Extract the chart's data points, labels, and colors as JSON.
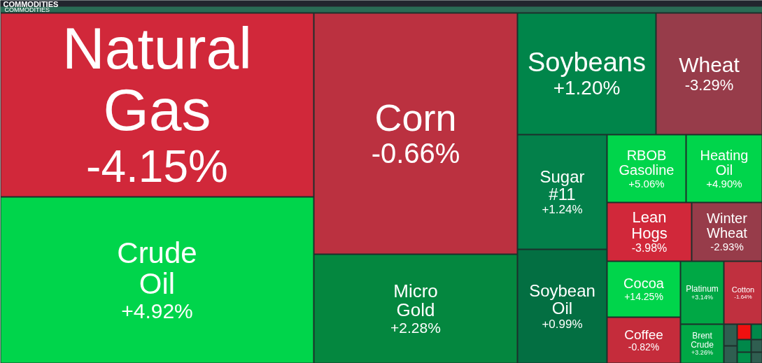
{
  "chart_data": {
    "type": "other",
    "title": "COMMODITIES",
    "subtitle": "COMMODITIES",
    "categories": [
      "Natural Gas",
      "Crude Oil",
      "Corn",
      "Micro Gold",
      "Soybeans",
      "Wheat",
      "Sugar #11",
      "Soybean Oil",
      "RBOB Gasoline",
      "Heating Oil",
      "Lean Hogs",
      "Winter Wheat",
      "Cocoa",
      "Coffee",
      "Platinum",
      "Brent Crude",
      "Cotton",
      null,
      null,
      null,
      null,
      null,
      null,
      null,
      null
    ],
    "values": [
      -4.15,
      4.92,
      -0.66,
      2.28,
      1.2,
      -3.29,
      1.24,
      0.99,
      5.06,
      4.9,
      -3.98,
      -2.93,
      14.25,
      -0.82,
      3.14,
      3.26,
      -1.64,
      null,
      null,
      null,
      null,
      null,
      null,
      null,
      null
    ],
    "value_labels": [
      "-4.15%",
      "+4.92%",
      "-0.66%",
      "+2.28%",
      "+1.20%",
      "-3.29%",
      "+1.24%",
      "+0.99%",
      "+5.06%",
      "+4.90%",
      "-3.98%",
      "-2.93%",
      "+14.25%",
      "-0.82%",
      "+3.14%",
      "+3.26%",
      "-1.64%",
      null,
      null,
      null,
      null,
      null,
      null,
      null,
      null
    ],
    "colors": [
      "#d1283a",
      "#00d54b",
      "#bb3140",
      "#04873f",
      "#00854a",
      "#973c4a",
      "#03804a",
      "#036f42",
      "#00d54b",
      "#00d54b",
      "#d1283a",
      "#973c4a",
      "#00d54b",
      "#c52c3b",
      "#00a845",
      "#00a845",
      "#c0303f",
      "#2f5e50",
      "#f01010",
      "#00884a",
      "#2f5e50",
      "#00884a",
      "#2f5e50",
      "#00904a",
      "#2f5e50"
    ]
  }
}
